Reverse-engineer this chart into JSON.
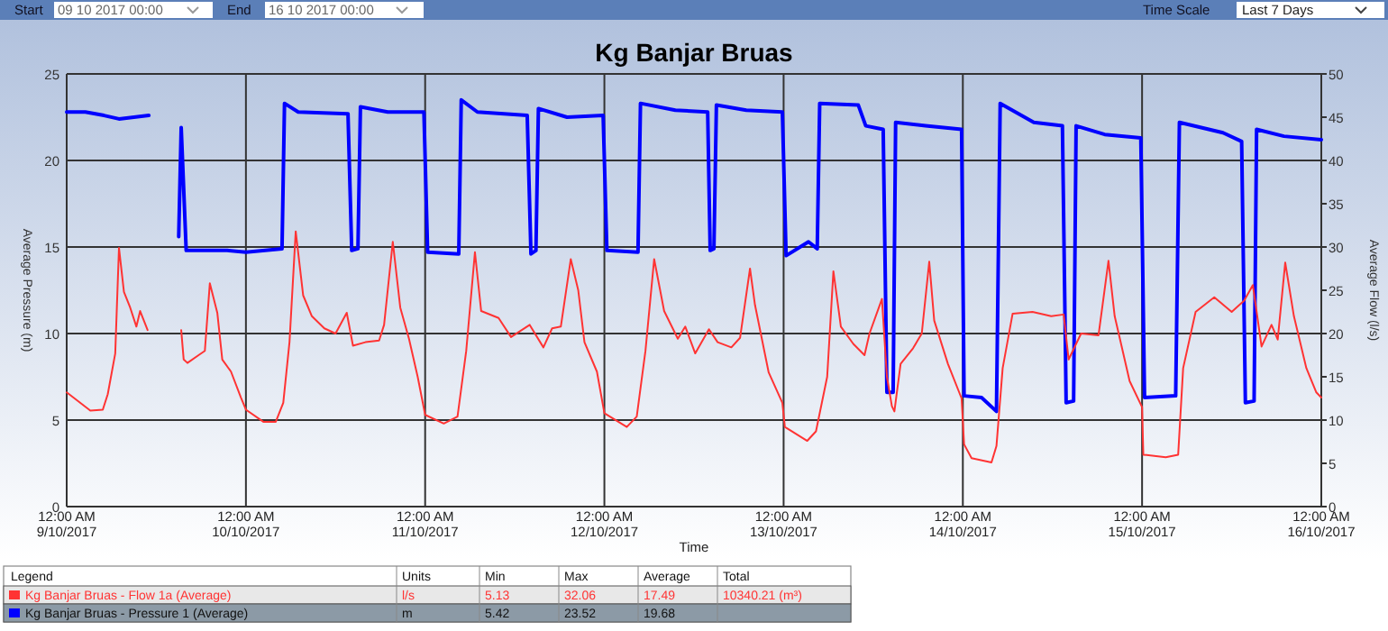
{
  "chart_data": {
    "type": "line",
    "title": "Kg Banjar Bruas",
    "xlabel": "Time",
    "ylabel": "Average Pressure (m)",
    "y2label": "Average Flow (l/s)",
    "xlim": [
      "2017-10-09T00:00",
      "2017-10-16T00:00"
    ],
    "xticks": [
      {
        "value": "2017-10-09T00:00",
        "label": "12:00 AM\n9/10/2017"
      },
      {
        "value": "2017-10-10T00:00",
        "label": "12:00 AM\n10/10/2017"
      },
      {
        "value": "2017-10-11T00:00",
        "label": "12:00 AM\n11/10/2017"
      },
      {
        "value": "2017-10-12T00:00",
        "label": "12:00 AM\n12/10/2017"
      },
      {
        "value": "2017-10-13T00:00",
        "label": "12:00 AM\n13/10/2017"
      },
      {
        "value": "2017-10-14T00:00",
        "label": "12:00 AM\n14/10/2017"
      },
      {
        "value": "2017-10-15T00:00",
        "label": "12:00 AM\n15/10/2017"
      },
      {
        "value": "2017-10-16T00:00",
        "label": "12:00 AM\n16/10/2017"
      }
    ],
    "ylim": [
      0,
      25
    ],
    "yticks": [
      0,
      5,
      10,
      15,
      20,
      25
    ],
    "y2lim": [
      0,
      50
    ],
    "y2ticks": [
      0,
      5,
      10,
      15,
      20,
      25,
      30,
      35,
      40,
      45,
      50
    ],
    "grid": true,
    "legend": "bottom",
    "marker": "none",
    "line_style": "solid",
    "series": [
      {
        "name": "Kg Banjar Bruas - Flow 1a (Average)",
        "color": "#ff3333",
        "axis": "y2",
        "x": [
          "2017-10-09T00:00",
          "2017-10-09T03:10",
          "2017-10-09T04:50",
          "2017-10-09T05:30",
          "2017-10-09T06:30",
          "2017-10-09T07:00",
          "2017-10-09T07:40",
          "2017-10-09T08:30",
          "2017-10-09T09:20",
          "2017-10-09T09:50",
          "2017-10-09T10:50",
          "2017-10-09T13:00",
          "2017-10-09T15:20",
          "2017-10-09T15:40",
          "2017-10-09T16:10",
          "2017-10-09T17:50",
          "2017-10-09T18:30",
          "2017-10-09T19:10",
          "2017-10-09T20:10",
          "2017-10-09T20:50",
          "2017-10-09T22:00",
          "2017-10-09T23:20",
          "2017-10-10T00:00",
          "2017-10-10T02:20",
          "2017-10-10T04:00",
          "2017-10-10T05:00",
          "2017-10-10T05:50",
          "2017-10-10T06:40",
          "2017-10-10T07:40",
          "2017-10-10T08:50",
          "2017-10-10T10:30",
          "2017-10-10T12:00",
          "2017-10-10T13:30",
          "2017-10-10T14:20",
          "2017-10-10T16:00",
          "2017-10-10T17:50",
          "2017-10-10T18:30",
          "2017-10-10T19:40",
          "2017-10-10T20:40",
          "2017-10-10T21:50",
          "2017-10-10T23:00",
          "2017-10-11T00:00",
          "2017-10-11T02:30",
          "2017-10-11T04:20",
          "2017-10-11T05:30",
          "2017-10-11T06:40",
          "2017-10-11T07:30",
          "2017-10-11T09:50",
          "2017-10-11T11:30",
          "2017-10-11T14:00",
          "2017-10-11T15:50",
          "2017-10-11T17:00",
          "2017-10-11T18:10",
          "2017-10-11T19:30",
          "2017-10-11T20:30",
          "2017-10-11T21:20",
          "2017-10-11T23:00",
          "2017-10-12T00:00",
          "2017-10-12T03:00",
          "2017-10-12T04:20",
          "2017-10-12T05:30",
          "2017-10-12T06:40",
          "2017-10-12T08:00",
          "2017-10-12T09:50",
          "2017-10-12T10:50",
          "2017-10-12T12:10",
          "2017-10-12T14:00",
          "2017-10-12T15:10",
          "2017-10-12T17:00",
          "2017-10-12T18:10",
          "2017-10-12T19:30",
          "2017-10-12T20:10",
          "2017-10-12T22:00",
          "2017-10-12T23:50",
          "2017-10-13T00:10",
          "2017-10-13T03:10",
          "2017-10-13T04:20",
          "2017-10-13T05:50",
          "2017-10-13T06:40",
          "2017-10-13T07:40",
          "2017-10-13T09:20",
          "2017-10-13T10:50",
          "2017-10-13T11:30",
          "2017-10-13T13:10",
          "2017-10-13T13:50",
          "2017-10-13T14:30",
          "2017-10-13T14:50",
          "2017-10-13T15:40",
          "2017-10-13T17:20",
          "2017-10-13T18:30",
          "2017-10-13T19:30",
          "2017-10-13T20:10",
          "2017-10-13T22:00",
          "2017-10-13T23:50",
          "2017-10-14T00:10",
          "2017-10-14T01:10",
          "2017-10-14T03:50",
          "2017-10-14T04:30",
          "2017-10-14T05:20",
          "2017-10-14T06:40",
          "2017-10-14T09:20",
          "2017-10-14T11:50",
          "2017-10-14T13:30",
          "2017-10-14T14:10",
          "2017-10-14T15:50",
          "2017-10-14T18:10",
          "2017-10-14T19:30",
          "2017-10-14T20:20",
          "2017-10-14T22:20",
          "2017-10-15T00:00",
          "2017-10-15T00:10",
          "2017-10-15T03:10",
          "2017-10-15T04:50",
          "2017-10-15T05:30",
          "2017-10-15T07:10",
          "2017-10-15T09:40",
          "2017-10-15T12:00",
          "2017-10-15T13:40",
          "2017-10-15T14:50",
          "2017-10-15T16:00",
          "2017-10-15T17:20",
          "2017-10-15T18:10",
          "2017-10-15T19:10",
          "2017-10-15T20:20",
          "2017-10-15T22:00",
          "2017-10-15T23:20",
          "2017-10-16T00:00"
        ],
        "values": [
          13.2,
          11.1,
          11.2,
          13,
          17.7,
          29.9,
          24.8,
          23,
          20.8,
          22.6,
          20.4,
          null,
          20.4,
          17,
          16.6,
          17.6,
          18,
          25.8,
          22.4,
          17,
          15.6,
          12.6,
          11.2,
          9.8,
          9.8,
          12,
          19,
          31.8,
          24.4,
          22,
          20.6,
          20,
          22.4,
          18.6,
          19,
          19.2,
          21,
          30.6,
          23,
          19.4,
          15,
          10.6,
          9.6,
          10.4,
          18,
          29.4,
          22.6,
          21.8,
          19.6,
          21,
          18.4,
          20.6,
          20.8,
          28.6,
          25,
          19,
          15.6,
          10.8,
          9.2,
          10.4,
          18,
          28.6,
          22.6,
          19.4,
          20.8,
          17.7,
          20.5,
          19,
          18.4,
          19.5,
          27.5,
          23.3,
          15.5,
          12,
          9.2,
          7.6,
          8.7,
          15,
          27.2,
          20.8,
          18.8,
          17.5,
          20,
          24,
          15,
          11.6,
          11,
          16.5,
          18.3,
          20,
          28.3,
          21.5,
          16.5,
          12.5,
          7.2,
          5.6,
          5.1,
          7,
          16,
          22.3,
          22.5,
          22,
          22.2,
          17,
          20,
          19.8,
          28.4,
          22,
          14.5,
          11.5,
          6,
          5.7,
          6,
          16,
          22.5,
          24.2,
          22.5,
          23.8,
          25.6,
          18.5,
          21,
          19.3,
          28.2,
          22,
          16,
          13.2,
          12.6
        ]
      },
      {
        "name": "Kg Banjar Bruas - Pressure 1 (Average)",
        "color": "#0000ff",
        "x": [
          "2017-10-09T00:00",
          "2017-10-09T02:30",
          "2017-10-09T05:00",
          "2017-10-09T07:00",
          "2017-10-09T11:00",
          "2017-10-09T13:00",
          "2017-10-09T15:00",
          "2017-10-09T15:20",
          "2017-10-09T16:00",
          "2017-10-09T21:30",
          "2017-10-10T00:00",
          "2017-10-10T04:50",
          "2017-10-10T05:10",
          "2017-10-10T07:00",
          "2017-10-10T13:40",
          "2017-10-10T14:10",
          "2017-10-10T15:00",
          "2017-10-10T15:20",
          "2017-10-10T19:00",
          "2017-10-10T23:50",
          "2017-10-11T00:20",
          "2017-10-11T04:30",
          "2017-10-11T04:50",
          "2017-10-11T07:00",
          "2017-10-11T13:40",
          "2017-10-11T14:10",
          "2017-10-11T14:50",
          "2017-10-11T15:10",
          "2017-10-11T19:00",
          "2017-10-11T23:50",
          "2017-10-12T00:20",
          "2017-10-12T04:30",
          "2017-10-12T04:50",
          "2017-10-12T09:30",
          "2017-10-12T13:50",
          "2017-10-12T14:10",
          "2017-10-12T14:40",
          "2017-10-12T15:00",
          "2017-10-12T19:00",
          "2017-10-12T23:50",
          "2017-10-13T00:20",
          "2017-10-13T03:20",
          "2017-10-13T04:30",
          "2017-10-13T04:50",
          "2017-10-13T10:00",
          "2017-10-13T11:00",
          "2017-10-13T13:20",
          "2017-10-13T13:50",
          "2017-10-13T14:40",
          "2017-10-13T15:00",
          "2017-10-13T19:00",
          "2017-10-13T23:50",
          "2017-10-14T00:10",
          "2017-10-14T02:30",
          "2017-10-14T04:30",
          "2017-10-14T05:00",
          "2017-10-14T09:30",
          "2017-10-14T13:20",
          "2017-10-14T13:50",
          "2017-10-14T14:50",
          "2017-10-14T15:10",
          "2017-10-14T19:00",
          "2017-10-14T23:50",
          "2017-10-15T00:20",
          "2017-10-15T04:30",
          "2017-10-15T05:00",
          "2017-10-15T10:50",
          "2017-10-15T13:20",
          "2017-10-15T13:50",
          "2017-10-15T15:00",
          "2017-10-15T15:20",
          "2017-10-15T19:00",
          "2017-10-16T00:00"
        ],
        "values": [
          22.8,
          22.8,
          22.6,
          22.4,
          22.6,
          null,
          15.6,
          21.9,
          14.8,
          14.8,
          14.7,
          14.9,
          23.3,
          22.8,
          22.7,
          14.8,
          14.9,
          23.1,
          22.8,
          22.8,
          14.7,
          14.6,
          23.5,
          22.8,
          22.6,
          14.6,
          14.8,
          23.0,
          22.5,
          22.6,
          14.8,
          14.7,
          23.3,
          22.9,
          22.8,
          14.8,
          14.9,
          23.2,
          22.9,
          22.8,
          14.5,
          15.3,
          14.9,
          23.3,
          23.2,
          22.0,
          21.8,
          6.6,
          6.6,
          22.2,
          22.0,
          21.8,
          6.4,
          6.3,
          5.5,
          23.3,
          22.2,
          22.0,
          6.0,
          6.1,
          22.0,
          21.5,
          21.3,
          6.3,
          6.4,
          22.2,
          21.6,
          21.1,
          6.0,
          6.1,
          21.8,
          21.4,
          21.2
        ]
      }
    ],
    "annotations": [
      "Start",
      "09 10 2017 00:00",
      "End",
      "16 10 2017 00:00",
      "Time Scale",
      "Last 7 Days",
      "Legend",
      "Units",
      "Min",
      "Max",
      "Average",
      "Total",
      "l/s",
      "5.13",
      "32.06",
      "17.49",
      "10340.21 (m³)",
      "m",
      "5.42",
      "23.52",
      "19.68"
    ]
  }
}
